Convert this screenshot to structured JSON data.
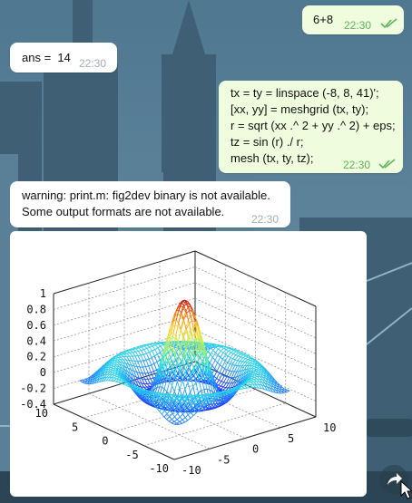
{
  "messages": [
    {
      "id": "m1",
      "direction": "outgoing",
      "lines": [
        "6+8"
      ],
      "time": "22:30"
    },
    {
      "id": "m2",
      "direction": "incoming",
      "lines": [
        "ans =  14"
      ],
      "time": "22:30"
    },
    {
      "id": "m3",
      "direction": "outgoing",
      "lines": [
        "tx = ty = linspace (-8, 8, 41)';",
        "[xx, yy] = meshgrid (tx, ty);",
        "r = sqrt (xx .^ 2 + yy .^ 2) + eps;",
        "tz = sin (r) ./ r;",
        "mesh (tx, ty, tz);"
      ],
      "time": "22:30"
    },
    {
      "id": "m4",
      "direction": "incoming",
      "lines": [
        "warning: print.m: fig2dev binary is not available.",
        "Some output formats are not available."
      ],
      "time": "22:30"
    }
  ],
  "chart_data": {
    "type": "mesh",
    "x": {
      "min": -8,
      "max": 8,
      "count": 41
    },
    "y": {
      "min": -8,
      "max": 8,
      "count": 41
    },
    "function": "sin(r)/r",
    "z_ticks": [
      "1",
      "0.8",
      "0.6",
      "0.4",
      "0.2",
      "0",
      "-0.2",
      "-0.4"
    ],
    "x_ticks": [
      "10",
      "5",
      "0",
      "-5",
      "-10"
    ],
    "y_ticks": [
      "-10",
      "-5",
      "0",
      "5",
      "10"
    ],
    "zlim": [
      -0.4,
      1
    ],
    "grid": true,
    "colormap": [
      "#1e2dff",
      "#1fa0ff",
      "#2ee8e0",
      "#9df26a",
      "#ffe236",
      "#ff8a1e",
      "#c80d0d"
    ]
  },
  "icons": {
    "read_receipt": "double-check-icon",
    "share": "share-arrow-icon"
  }
}
